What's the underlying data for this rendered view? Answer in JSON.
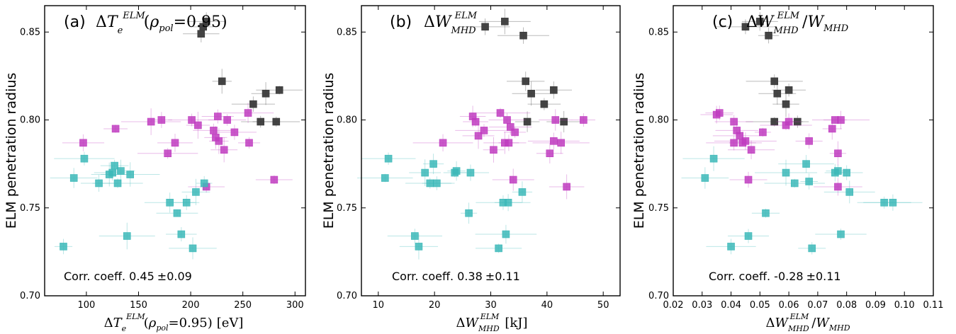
{
  "chart_data": [
    {
      "type": "scatter",
      "panel_label": "(a)",
      "ylabel": "ELM penetration radius",
      "xlim": [
        60,
        310
      ],
      "ylim": [
        0.7,
        0.865
      ],
      "xticks": [
        "100",
        "150",
        "200",
        "250",
        "300"
      ],
      "xtick_values": [
        100,
        150,
        200,
        250,
        300
      ],
      "yticks": [
        "0.70",
        "0.75",
        "0.80",
        "0.85"
      ],
      "ytick_values": [
        0.7,
        0.75,
        0.8,
        0.85
      ],
      "corr_text": "Corr. coeff. 0.45",
      "corr_pm": "±0.09",
      "xlabel_unit": "[eV]",
      "rho_value": "=0.95",
      "series": [
        {
          "color": "#3a3a3a",
          "points": [
            [
              215,
              0.856
            ],
            [
              212,
              0.853
            ],
            [
              210,
              0.849
            ],
            [
              230,
              0.822
            ],
            [
              260,
              0.809
            ],
            [
              272,
              0.815
            ],
            [
              285,
              0.817
            ],
            [
              267,
              0.799
            ],
            [
              282,
              0.799
            ]
          ]
        },
        {
          "color": "#c03cc0",
          "points": [
            [
              97,
              0.787
            ],
            [
              128,
              0.795
            ],
            [
              162,
              0.799
            ],
            [
              172,
              0.8
            ],
            [
              178,
              0.781
            ],
            [
              185,
              0.787
            ],
            [
              201,
              0.8
            ],
            [
              207,
              0.797
            ],
            [
              215,
              0.762
            ],
            [
              222,
              0.794
            ],
            [
              224,
              0.79
            ],
            [
              226,
              0.802
            ],
            [
              227,
              0.788
            ],
            [
              232,
              0.783
            ],
            [
              235,
              0.8
            ],
            [
              242,
              0.793
            ],
            [
              255,
              0.804
            ],
            [
              256,
              0.787
            ],
            [
              280,
              0.766
            ]
          ]
        },
        {
          "color": "#3cb8b8",
          "points": [
            [
              78,
              0.728
            ],
            [
              88,
              0.767
            ],
            [
              98,
              0.778
            ],
            [
              112,
              0.764
            ],
            [
              122,
              0.769
            ],
            [
              125,
              0.77
            ],
            [
              127,
              0.774
            ],
            [
              130,
              0.764
            ],
            [
              133,
              0.771
            ],
            [
              139,
              0.734
            ],
            [
              142,
              0.769
            ],
            [
              180,
              0.753
            ],
            [
              187,
              0.747
            ],
            [
              191,
              0.735
            ],
            [
              196,
              0.753
            ],
            [
              202,
              0.727
            ],
            [
              205,
              0.759
            ],
            [
              213,
              0.764
            ]
          ]
        }
      ]
    },
    {
      "type": "scatter",
      "panel_label": "(b)",
      "ylabel": "ELM penetration radius",
      "xlim": [
        7,
        53
      ],
      "ylim": [
        0.7,
        0.865
      ],
      "xticks": [
        "10",
        "20",
        "30",
        "40",
        "50"
      ],
      "xtick_values": [
        10,
        20,
        30,
        40,
        50
      ],
      "yticks": [
        "0.70",
        "0.75",
        "0.80",
        "0.85"
      ],
      "ytick_values": [
        0.7,
        0.75,
        0.8,
        0.85
      ],
      "corr_text": "Corr. coeff. 0.38",
      "corr_pm": "±0.11",
      "xlabel_unit": "[kJ]",
      "series": [
        {
          "color": "#3a3a3a",
          "points": [
            [
              29.0,
              0.853
            ],
            [
              32.5,
              0.856
            ],
            [
              35.8,
              0.848
            ],
            [
              36.2,
              0.822
            ],
            [
              37.2,
              0.815
            ],
            [
              39.5,
              0.809
            ],
            [
              41.2,
              0.817
            ],
            [
              36.5,
              0.799
            ],
            [
              43.0,
              0.799
            ]
          ]
        },
        {
          "color": "#c03cc0",
          "points": [
            [
              21.5,
              0.787
            ],
            [
              26.8,
              0.802
            ],
            [
              27.3,
              0.799
            ],
            [
              27.8,
              0.791
            ],
            [
              28.8,
              0.794
            ],
            [
              30.5,
              0.783
            ],
            [
              31.7,
              0.804
            ],
            [
              32.5,
              0.787
            ],
            [
              32.9,
              0.8
            ],
            [
              33.2,
              0.787
            ],
            [
              33.5,
              0.796
            ],
            [
              34.0,
              0.766
            ],
            [
              34.3,
              0.793
            ],
            [
              40.5,
              0.781
            ],
            [
              41.2,
              0.788
            ],
            [
              41.5,
              0.8
            ],
            [
              42.5,
              0.787
            ],
            [
              43.5,
              0.762
            ],
            [
              46.5,
              0.8
            ]
          ]
        },
        {
          "color": "#3cb8b8",
          "points": [
            [
              11.2,
              0.767
            ],
            [
              11.8,
              0.778
            ],
            [
              16.5,
              0.734
            ],
            [
              17.2,
              0.728
            ],
            [
              18.3,
              0.77
            ],
            [
              19.2,
              0.764
            ],
            [
              19.8,
              0.775
            ],
            [
              20.4,
              0.764
            ],
            [
              23.6,
              0.77
            ],
            [
              23.9,
              0.771
            ],
            [
              26.1,
              0.747
            ],
            [
              26.4,
              0.77
            ],
            [
              31.4,
              0.727
            ],
            [
              32.2,
              0.753
            ],
            [
              32.7,
              0.735
            ],
            [
              33.1,
              0.753
            ],
            [
              35.6,
              0.759
            ]
          ]
        }
      ]
    },
    {
      "type": "scatter",
      "panel_label": "(c)",
      "ylabel": "ELM penetration radius",
      "xlim": [
        0.02,
        0.11
      ],
      "ylim": [
        0.7,
        0.865
      ],
      "xticks": [
        "0.02",
        "0.03",
        "0.04",
        "0.05",
        "0.06",
        "0.07",
        "0.08",
        "0.09",
        "0.10",
        "0.11"
      ],
      "xtick_values": [
        0.02,
        0.03,
        0.04,
        0.05,
        0.06,
        0.07,
        0.08,
        0.09,
        0.1,
        0.11
      ],
      "yticks": [
        "0.70",
        "0.75",
        "0.80",
        "0.85"
      ],
      "ytick_values": [
        0.7,
        0.75,
        0.8,
        0.85
      ],
      "corr_text": "Corr. coeff. -0.28",
      "corr_pm": "±0.11",
      "series": [
        {
          "color": "#3a3a3a",
          "points": [
            [
              0.045,
              0.853
            ],
            [
              0.05,
              0.856
            ],
            [
              0.053,
              0.848
            ],
            [
              0.055,
              0.822
            ],
            [
              0.06,
              0.817
            ],
            [
              0.056,
              0.815
            ],
            [
              0.059,
              0.809
            ],
            [
              0.055,
              0.799
            ],
            [
              0.063,
              0.799
            ]
          ]
        },
        {
          "color": "#c03cc0",
          "points": [
            [
              0.035,
              0.803
            ],
            [
              0.036,
              0.804
            ],
            [
              0.041,
              0.799
            ],
            [
              0.042,
              0.794
            ],
            [
              0.041,
              0.787
            ],
            [
              0.043,
              0.791
            ],
            [
              0.044,
              0.787
            ],
            [
              0.045,
              0.788
            ],
            [
              0.046,
              0.766
            ],
            [
              0.047,
              0.783
            ],
            [
              0.051,
              0.793
            ],
            [
              0.059,
              0.797
            ],
            [
              0.06,
              0.799
            ],
            [
              0.067,
              0.788
            ],
            [
              0.075,
              0.795
            ],
            [
              0.076,
              0.8
            ],
            [
              0.077,
              0.781
            ],
            [
              0.077,
              0.762
            ],
            [
              0.078,
              0.8
            ]
          ]
        },
        {
          "color": "#3cb8b8",
          "points": [
            [
              0.031,
              0.767
            ],
            [
              0.034,
              0.778
            ],
            [
              0.04,
              0.728
            ],
            [
              0.046,
              0.734
            ],
            [
              0.052,
              0.747
            ],
            [
              0.059,
              0.77
            ],
            [
              0.062,
              0.764
            ],
            [
              0.066,
              0.775
            ],
            [
              0.067,
              0.765
            ],
            [
              0.068,
              0.727
            ],
            [
              0.076,
              0.77
            ],
            [
              0.077,
              0.771
            ],
            [
              0.078,
              0.735
            ],
            [
              0.08,
              0.77
            ],
            [
              0.081,
              0.759
            ],
            [
              0.093,
              0.753
            ],
            [
              0.096,
              0.753
            ]
          ]
        }
      ]
    }
  ]
}
